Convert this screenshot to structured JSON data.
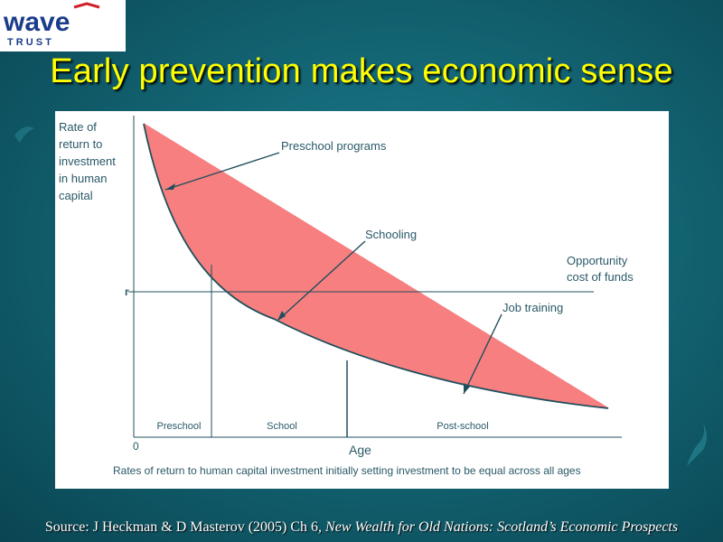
{
  "logo": {
    "word": "wave",
    "subword": "T R U S T",
    "colors": {
      "wave_blue": "#1a3c8a",
      "accent_red": "#d01e2a"
    }
  },
  "title": "Early prevention makes economic sense",
  "figure": {
    "y_axis_label": [
      "Rate of",
      "return to",
      "investment",
      "in human",
      "capital"
    ],
    "r_label": "r",
    "origin_label": "0",
    "x_axis_label": "Age",
    "opportunity_label": [
      "Opportunity",
      "cost of funds"
    ],
    "annotations": {
      "preschool_programs": "Preschool programs",
      "schooling": "Schooling",
      "job_training": "Job training"
    },
    "stages": [
      "Preschool",
      "School",
      "Post-school"
    ],
    "caption": "Rates of return to human capital investment initially setting investment to be equal across all ages",
    "colors": {
      "fill": "#f77f7f",
      "line": "#1f4f5c",
      "text": "#2a5968"
    }
  },
  "source": {
    "prefix": "Source: J Heckman & D Masterov (2005) Ch 6, ",
    "book": "New Wealth for Old Nations: Scotland’s Economic Prospects"
  }
}
